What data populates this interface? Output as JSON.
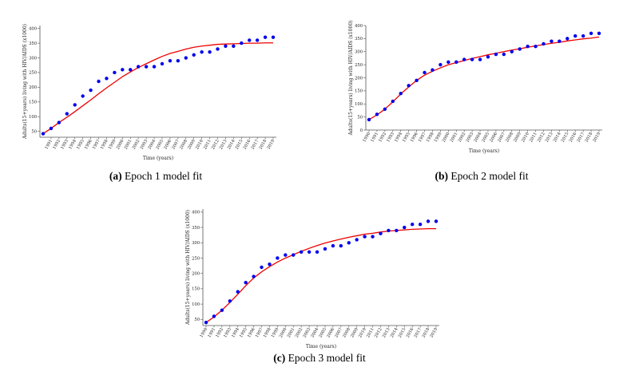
{
  "chart_data": [
    {
      "type": "scatter",
      "caption_tag": "(a)",
      "caption_text": "Epoch 1 model fit",
      "xlabel": "Time (years)",
      "ylabel": "Adults(15+years) living with HIV/AIDS (x1000)",
      "x": [
        "1990",
        "1991",
        "1992",
        "1993",
        "1994",
        "1995",
        "1996",
        "1997",
        "1998",
        "1999",
        "2000",
        "2001",
        "2002",
        "2003",
        "2004",
        "2005",
        "2006",
        "2007",
        "2008",
        "2009",
        "2010",
        "2011",
        "2012",
        "2013",
        "2014",
        "2015",
        "2016",
        "2017",
        "2018",
        "2019"
      ],
      "xticks_shown": [
        "1991",
        "1992",
        "1993",
        "1994",
        "1995",
        "1996",
        "1997",
        "1998",
        "1999",
        "2000",
        "2001",
        "2002",
        "2003",
        "2004",
        "2005",
        "2006",
        "2007",
        "2008",
        "2009",
        "2010",
        "2011",
        "2012",
        "2013",
        "2014",
        "2015",
        "2016",
        "2017",
        "2018",
        "2019"
      ],
      "yticks": [
        50,
        100,
        150,
        200,
        250,
        300,
        350,
        400
      ],
      "ylim": [
        30,
        410
      ],
      "series": [
        {
          "kind": "observed",
          "color": "#0000ee",
          "values": [
            42,
            60,
            80,
            110,
            140,
            170,
            190,
            220,
            230,
            250,
            260,
            260,
            270,
            270,
            270,
            280,
            290,
            290,
            300,
            310,
            320,
            320,
            330,
            340,
            340,
            350,
            360,
            360,
            370,
            370
          ]
        },
        {
          "kind": "model",
          "color": "#ee0000",
          "values": [
            42,
            60,
            80,
            98,
            117,
            137,
            157,
            178,
            198,
            217,
            236,
            252,
            267,
            280,
            293,
            305,
            315,
            322,
            330,
            336,
            340,
            343,
            346,
            347,
            348,
            349,
            350,
            350,
            351,
            351
          ]
        }
      ]
    },
    {
      "type": "scatter",
      "caption_tag": "(b)",
      "caption_text": "Epoch 2 model fit",
      "xlabel": "Time (years)",
      "ylabel": "Adults(15+years) living with HIV/AIDS (x1000)",
      "x": [
        "1990",
        "1991",
        "1992",
        "1993",
        "1994",
        "1995",
        "1996",
        "1997",
        "1998",
        "1999",
        "2000",
        "2001",
        "2002",
        "2003",
        "2004",
        "2005",
        "2006",
        "2007",
        "2008",
        "2009",
        "2010",
        "2011",
        "2012",
        "2013",
        "2014",
        "2015",
        "2016",
        "2017",
        "2018",
        "2019"
      ],
      "xticks_shown": [
        "1990",
        "1991",
        "1992",
        "1993",
        "1994",
        "1995",
        "1996",
        "1997",
        "1998",
        "1999",
        "2000",
        "2001",
        "2002",
        "2003",
        "2004",
        "2005",
        "2006",
        "2007",
        "2008",
        "2009",
        "2010",
        "2011",
        "2012",
        "2013",
        "2014",
        "2015",
        "2016",
        "2017",
        "2018",
        "2019"
      ],
      "yticks": [
        0,
        50,
        100,
        150,
        200,
        250,
        300,
        350,
        400
      ],
      "ylim": [
        0,
        400
      ],
      "series": [
        {
          "kind": "observed",
          "color": "#0000ee",
          "values": [
            40,
            60,
            80,
            110,
            140,
            170,
            190,
            220,
            230,
            250,
            260,
            260,
            270,
            270,
            270,
            280,
            290,
            290,
            300,
            310,
            320,
            320,
            330,
            340,
            340,
            350,
            360,
            360,
            370,
            370
          ]
        },
        {
          "kind": "model",
          "color": "#ee0000",
          "values": [
            40,
            58,
            80,
            108,
            138,
            165,
            190,
            210,
            225,
            238,
            250,
            258,
            266,
            274,
            281,
            288,
            294,
            300,
            306,
            311,
            317,
            322,
            327,
            332,
            336,
            341,
            345,
            349,
            352,
            356
          ]
        }
      ]
    },
    {
      "type": "scatter",
      "caption_tag": "(c)",
      "caption_text": "Epoch 3 model fit",
      "xlabel": "Time (years)",
      "ylabel": "Adults(15+years) living with HIV/AIDS (x1000)",
      "x": [
        "1990",
        "1991",
        "1992",
        "1993",
        "1994",
        "1995",
        "1996",
        "1997",
        "1998",
        "1999",
        "2000",
        "2001",
        "2002",
        "2003",
        "2004",
        "2005",
        "2006",
        "2007",
        "2008",
        "2009",
        "2010",
        "2011",
        "2012",
        "2013",
        "2014",
        "2015",
        "2016",
        "2017",
        "2018",
        "2019"
      ],
      "xticks_shown": [
        "1990",
        "1991",
        "1992",
        "1993",
        "1994",
        "1995",
        "1996",
        "1997",
        "1998",
        "1999",
        "2000",
        "2001",
        "2002",
        "2003",
        "2004",
        "2005",
        "2006",
        "2007",
        "2008",
        "2009",
        "2010",
        "2011",
        "2012",
        "2013",
        "2014",
        "2015",
        "2016",
        "2017",
        "2018",
        "2019"
      ],
      "yticks": [
        50,
        100,
        150,
        200,
        250,
        300,
        350,
        400
      ],
      "ylim": [
        30,
        410
      ],
      "series": [
        {
          "kind": "observed",
          "color": "#0000ee",
          "values": [
            40,
            60,
            80,
            110,
            140,
            170,
            190,
            220,
            230,
            250,
            260,
            260,
            270,
            270,
            270,
            280,
            290,
            290,
            300,
            310,
            320,
            320,
            330,
            340,
            340,
            350,
            360,
            360,
            370,
            370
          ]
        },
        {
          "kind": "model",
          "color": "#ee0000",
          "values": [
            40,
            58,
            80,
            105,
            132,
            160,
            185,
            205,
            222,
            237,
            250,
            261,
            272,
            282,
            291,
            299,
            306,
            312,
            318,
            323,
            328,
            331,
            335,
            338,
            340,
            342,
            344,
            345,
            346,
            346
          ]
        }
      ]
    }
  ]
}
